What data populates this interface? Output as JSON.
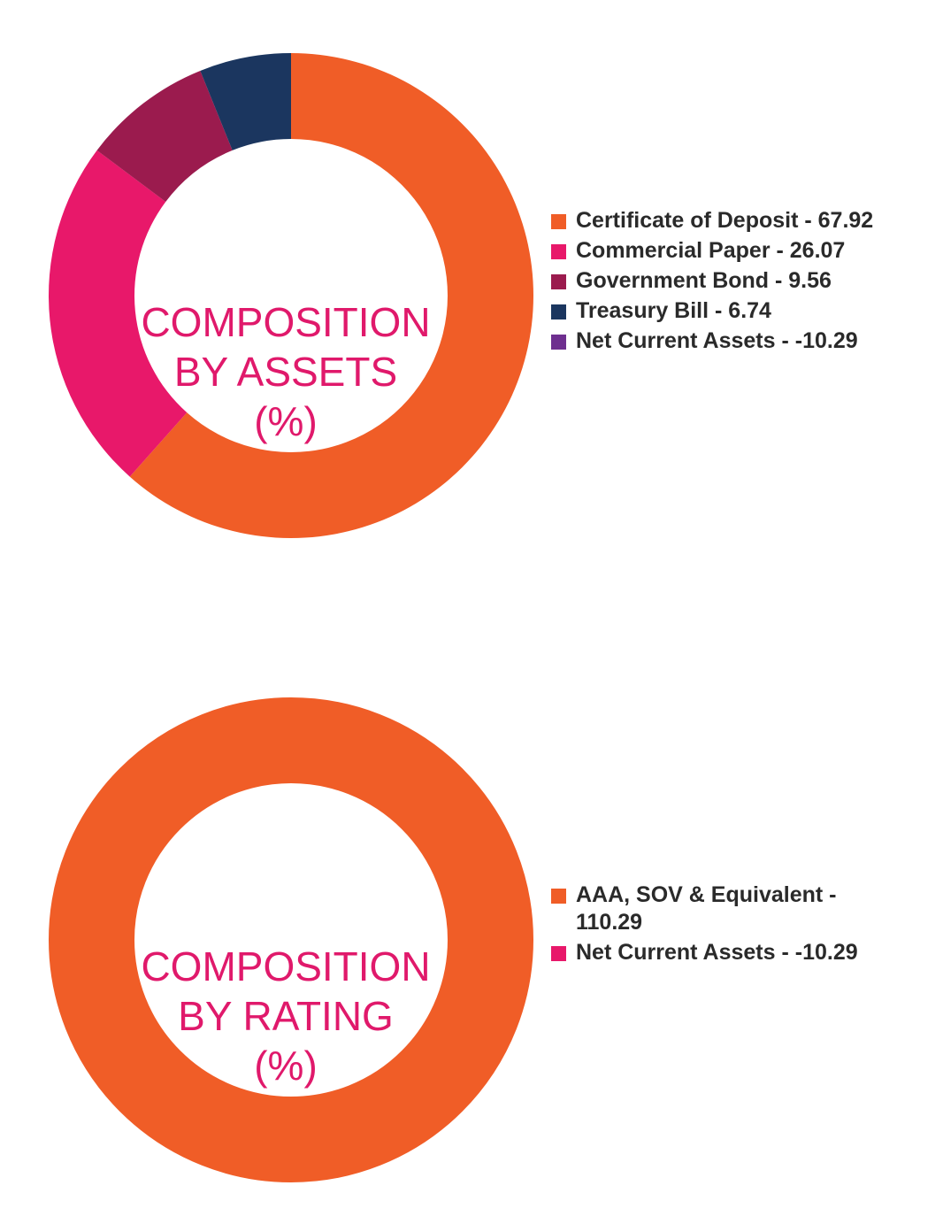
{
  "colors": {
    "orange": "#f05d27",
    "pink": "#e8186a",
    "maroon": "#9b1b4e",
    "navy": "#1b365f",
    "purple": "#6e2f8f",
    "label": "#e0196b"
  },
  "chart_data": [
    {
      "type": "pie",
      "variant": "donut",
      "center_lines": [
        "COMPOSITION",
        "BY ASSETS",
        "(%)"
      ],
      "legend_position": "right",
      "series": [
        {
          "name": "Certificate of Deposit",
          "value": 67.92,
          "label": "Certificate of Deposit - 67.92",
          "color": "#f05d27"
        },
        {
          "name": "Commercial Paper",
          "value": 26.07,
          "label": "Commercial Paper - 26.07",
          "color": "#e8186a"
        },
        {
          "name": "Government Bond",
          "value": 9.56,
          "label": "Government Bond - 9.56",
          "color": "#9b1b4e"
        },
        {
          "name": "Treasury Bill",
          "value": 6.74,
          "label": "Treasury Bill - 6.74",
          "color": "#1b365f"
        },
        {
          "name": "Net Current Assets",
          "value": -10.29,
          "label": "Net Current Assets - -10.29",
          "color": "#6e2f8f"
        }
      ]
    },
    {
      "type": "pie",
      "variant": "donut",
      "center_lines": [
        "COMPOSITION",
        "BY RATING",
        "(%)"
      ],
      "legend_position": "right",
      "series": [
        {
          "name": "AAA, SOV & Equivalent",
          "value": 110.29,
          "label": "AAA, SOV & Equivalent - 110.29",
          "color": "#f05d27"
        },
        {
          "name": "Net Current Assets",
          "value": -10.29,
          "label": "Net Current Assets - -10.29",
          "color": "#e8186a"
        }
      ]
    }
  ]
}
